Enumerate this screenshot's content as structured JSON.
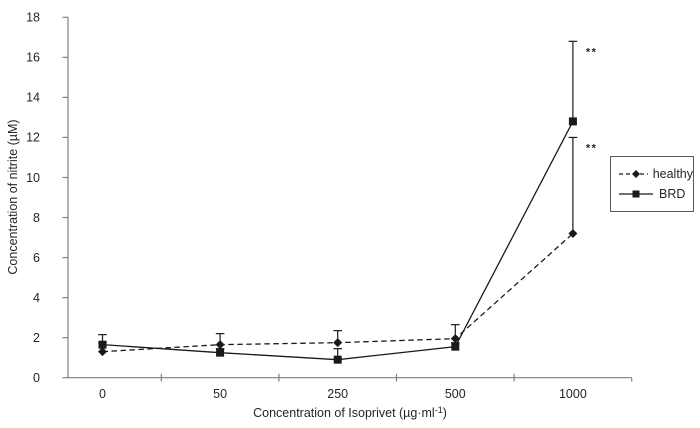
{
  "figure": {
    "background": "#ffffff",
    "axis_color": "#808080",
    "text_color": "#262626",
    "series_color": "#1a1a1a",
    "legend_border_color": "#595959"
  },
  "chart_data": {
    "type": "line",
    "title": "",
    "xlabel": "Concentration of Isoprivet (µg·ml⁻¹)",
    "xlabel_parts": {
      "prefix": "Concentration of Isoprivet (µg·ml",
      "sup": "-1",
      "suffix": ")"
    },
    "ylabel": "Concentration of nitrite (µM)",
    "categories": [
      "0",
      "50",
      "250",
      "500",
      "1000"
    ],
    "ylim": [
      0,
      18
    ],
    "yticks": [
      0,
      2,
      4,
      6,
      8,
      10,
      12,
      14,
      16,
      18
    ],
    "grid": false,
    "legend_position": "right",
    "series": [
      {
        "name": "healthy",
        "marker": "diamond",
        "line_style": "dashed",
        "values": [
          1.3,
          1.65,
          1.75,
          1.95,
          7.2
        ],
        "error_up": [
          0.45,
          0.55,
          0.6,
          0.7,
          4.8
        ]
      },
      {
        "name": "BRD",
        "marker": "square",
        "line_style": "solid",
        "values": [
          1.65,
          1.25,
          0.9,
          1.55,
          12.8
        ],
        "error_up": [
          0.5,
          0.2,
          0.55,
          0.2,
          4.0
        ]
      }
    ],
    "annotations": [
      {
        "text": "**",
        "category_index": 4,
        "y": 16.3
      },
      {
        "text": "**",
        "category_index": 4,
        "y": 11.5
      }
    ]
  }
}
